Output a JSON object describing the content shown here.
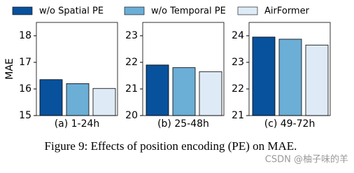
{
  "legend": {
    "entries": [
      {
        "name": "w/o Spatial PE",
        "color": "#08519c"
      },
      {
        "name": "w/o Temporal PE",
        "color": "#6baed6"
      },
      {
        "name": "AirFormer",
        "color": "#deebf7"
      }
    ]
  },
  "chart_data": [
    {
      "type": "bar",
      "xlabel": "(a) 1-24h",
      "ylabel": "MAE",
      "values": [
        16.35,
        16.2,
        16.02
      ],
      "ylim": [
        15,
        18.5
      ],
      "yticks": [
        15,
        16,
        17,
        18
      ]
    },
    {
      "type": "bar",
      "xlabel": "(b) 25-48h",
      "values": [
        21.9,
        21.8,
        21.65
      ],
      "ylim": [
        20,
        23.5
      ],
      "yticks": [
        20,
        21,
        22,
        23
      ]
    },
    {
      "type": "bar",
      "xlabel": "(c) 49-72h",
      "values": [
        23.95,
        23.87,
        23.65
      ],
      "ylim": [
        21,
        24.5
      ],
      "yticks": [
        21,
        22,
        23,
        24
      ]
    }
  ],
  "caption": "Figure 9: Effects of position encoding (PE) on MAE.",
  "watermark": "CSDN @柚子味的羊"
}
